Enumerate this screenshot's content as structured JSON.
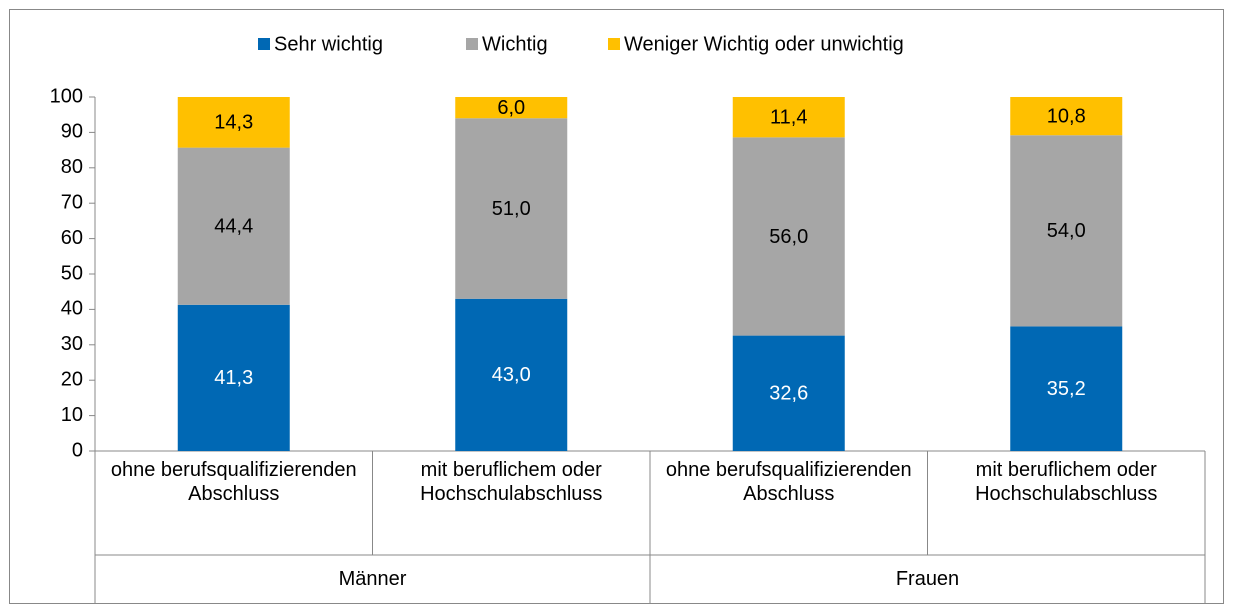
{
  "chart_data": {
    "type": "stacked_bar",
    "groups": [
      "Männer",
      "Frauen"
    ],
    "categories": [
      "ohne berufsqualifizierenden Abschluss",
      "mit beruflichem oder Hochschulabschluss",
      "ohne berufsqualifizierenden Abschluss",
      "mit beruflichem oder Hochschulabschluss"
    ],
    "series": [
      {
        "name": "Sehr wichtig",
        "color": "#0068b4",
        "values": [
          41.3,
          43.0,
          32.6,
          35.2
        ],
        "value_labels": [
          "41,3",
          "43,0",
          "32,6",
          "35,2"
        ]
      },
      {
        "name": "Wichtig",
        "color": "#a6a6a6",
        "values": [
          44.4,
          51.0,
          56.0,
          54.0
        ],
        "value_labels": [
          "44,4",
          "51,0",
          "56,0",
          "54,0"
        ]
      },
      {
        "name": "Weniger Wichtig oder unwichtig",
        "color": "#ffc000",
        "values": [
          14.3,
          6.0,
          11.4,
          10.8
        ],
        "value_labels": [
          "14,3",
          "6,0",
          "11,4",
          "10,8"
        ]
      }
    ],
    "ylim": [
      0,
      100
    ],
    "yticks": [
      0,
      10,
      20,
      30,
      40,
      50,
      60,
      70,
      80,
      90,
      100
    ],
    "legend": "top"
  }
}
